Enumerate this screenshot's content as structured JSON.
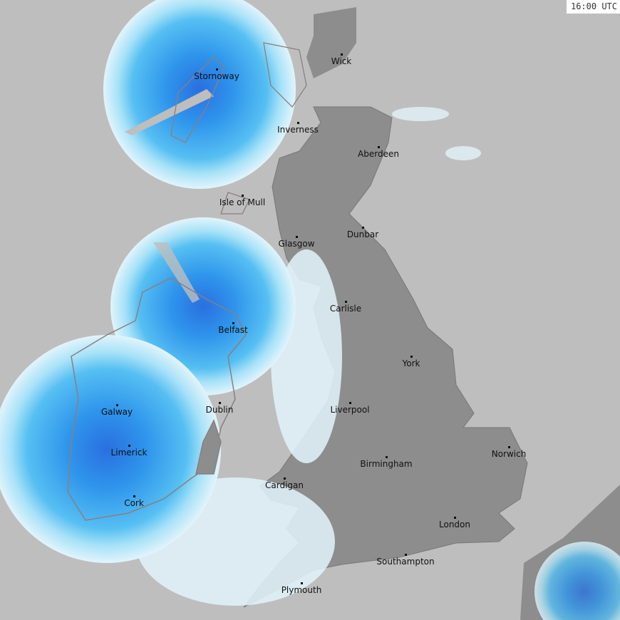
{
  "map": {
    "timestamp": "16:00 UTC",
    "colors": {
      "sea": "#bebebe",
      "land": "#8d8d8d",
      "radar_light": "#dff3fb",
      "radar_mid": "#5cc0f2",
      "radar_heavy": "#2b8ce8",
      "radar_intense": "#2a50d8"
    },
    "cities": [
      {
        "name": "Wick"
      },
      {
        "name": "Stornoway"
      },
      {
        "name": "Inverness"
      },
      {
        "name": "Aberdeen"
      },
      {
        "name": "Isle of Mull"
      },
      {
        "name": "Dunbar"
      },
      {
        "name": "Glasgow"
      },
      {
        "name": "Carlisle"
      },
      {
        "name": "Belfast"
      },
      {
        "name": "York"
      },
      {
        "name": "Galway"
      },
      {
        "name": "Dublin"
      },
      {
        "name": "Liverpool"
      },
      {
        "name": "Limerick"
      },
      {
        "name": "Norwich"
      },
      {
        "name": "Birmingham"
      },
      {
        "name": "Cardigan"
      },
      {
        "name": "Cork"
      },
      {
        "name": "London"
      },
      {
        "name": "Southampton"
      },
      {
        "name": "Plymouth"
      }
    ]
  }
}
